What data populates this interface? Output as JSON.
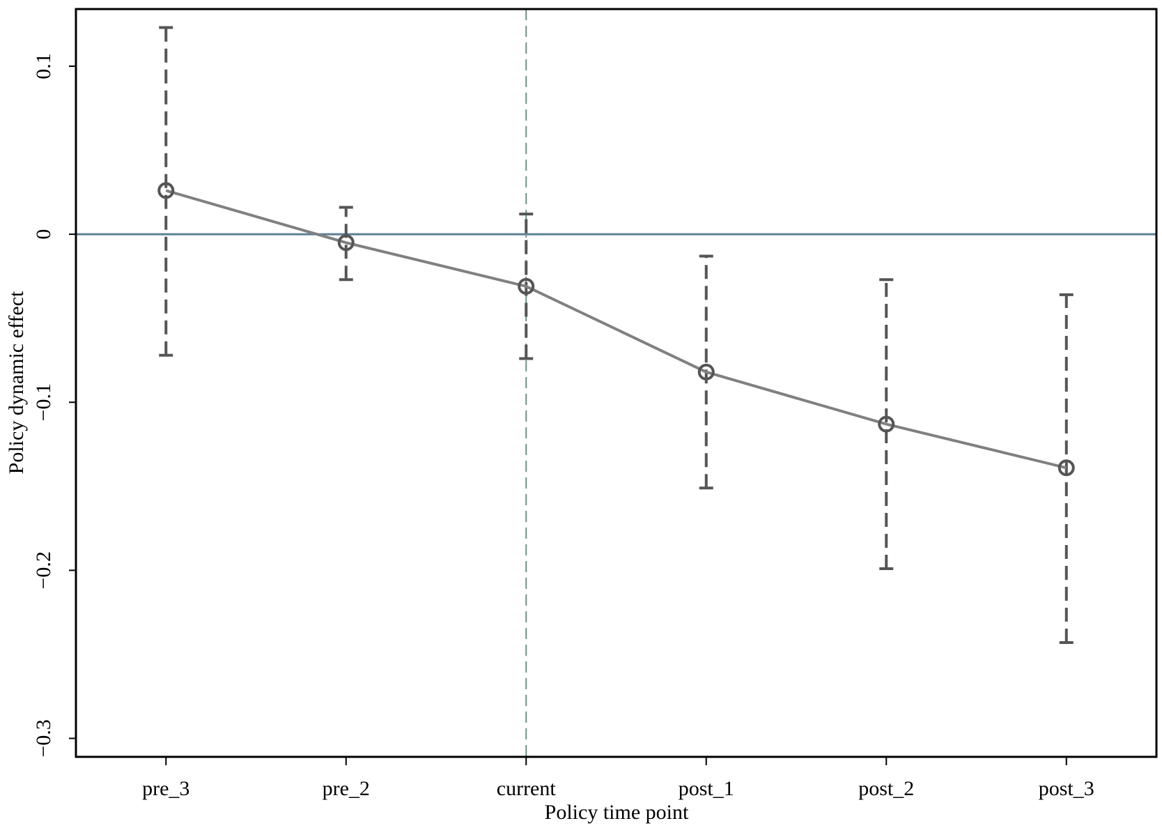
{
  "chart_data": {
    "type": "errorbar-line",
    "xlabel": "Policy time point",
    "ylabel": "Policy dynamic effect",
    "categories": [
      "pre_3",
      "pre_2",
      "current",
      "post_1",
      "post_2",
      "post_3"
    ],
    "series": [
      {
        "values": [
          0.026,
          -0.005,
          -0.031,
          -0.082,
          -0.113,
          -0.139
        ],
        "lower": [
          -0.072,
          -0.027,
          -0.074,
          -0.151,
          -0.199,
          -0.243
        ],
        "upper": [
          0.123,
          0.016,
          0.012,
          -0.013,
          -0.027,
          -0.036
        ],
        "color": "#808080",
        "marker_color": "#555555",
        "errorbar_color": "#555555"
      }
    ],
    "ylim": [
      -0.311,
      0.134
    ],
    "yticks": [
      {
        "value": -0.3,
        "label": "−0.3"
      },
      {
        "value": -0.2,
        "label": "−0.2"
      },
      {
        "value": -0.1,
        "label": "−0.1"
      },
      0,
      0.1
    ],
    "hline": 0,
    "hline_color": "#5b7f95",
    "vline_at": "current",
    "vline_color": "#6f8f88",
    "grid": false
  }
}
